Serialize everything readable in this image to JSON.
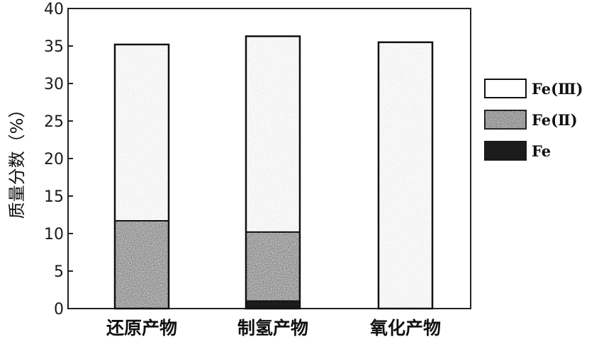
{
  "chart_data": {
    "type": "bar",
    "stacked": true,
    "categories": [
      "还原产物",
      "制氢产物",
      "氧化产物"
    ],
    "series": [
      {
        "name": "Fe",
        "values": [
          0,
          1,
          0
        ],
        "color": "#1c1c1c",
        "pattern": "solid"
      },
      {
        "name": "Fe(Ⅱ)",
        "values": [
          11.7,
          9.2,
          0
        ],
        "color": "#3a3a3a",
        "pattern": "dense-speckle"
      },
      {
        "name": "Fe(Ⅲ)",
        "values": [
          23.5,
          26.1,
          35.5
        ],
        "color": "#ffffff",
        "pattern": "light-speckle"
      }
    ],
    "ylabel": "质量分数（%）",
    "ylim": [
      0,
      40
    ],
    "yticks": [
      "0",
      "5",
      "10",
      "15",
      "20",
      "25",
      "30",
      "35",
      "40"
    ],
    "legend_position": "right",
    "grid": false
  }
}
